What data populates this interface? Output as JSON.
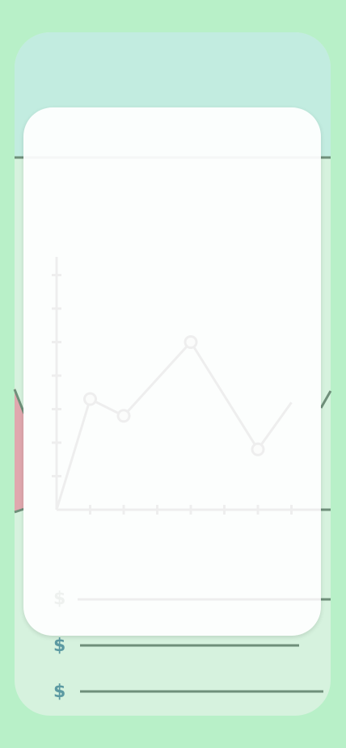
{
  "illustration": {
    "currency_symbol": "$",
    "colors": {
      "page_background": "#b8f0c8",
      "card_background": "#d6f2de",
      "card_top_band": "#c2ece0",
      "chart_line": "#6f8f7a",
      "accent_shape": "#e0a8ae",
      "currency": "#5c9aa2",
      "modal": "#ffffff",
      "modal_chart": "#eeeeee"
    }
  },
  "chart_data": {
    "type": "line",
    "x": [
      0,
      1,
      2,
      3,
      4,
      5,
      6,
      7
    ],
    "values": [
      0,
      3.3,
      2.8,
      null,
      5,
      null,
      1.8,
      3.2
    ],
    "title": "",
    "xlabel": "",
    "ylabel": "",
    "grid": false
  }
}
